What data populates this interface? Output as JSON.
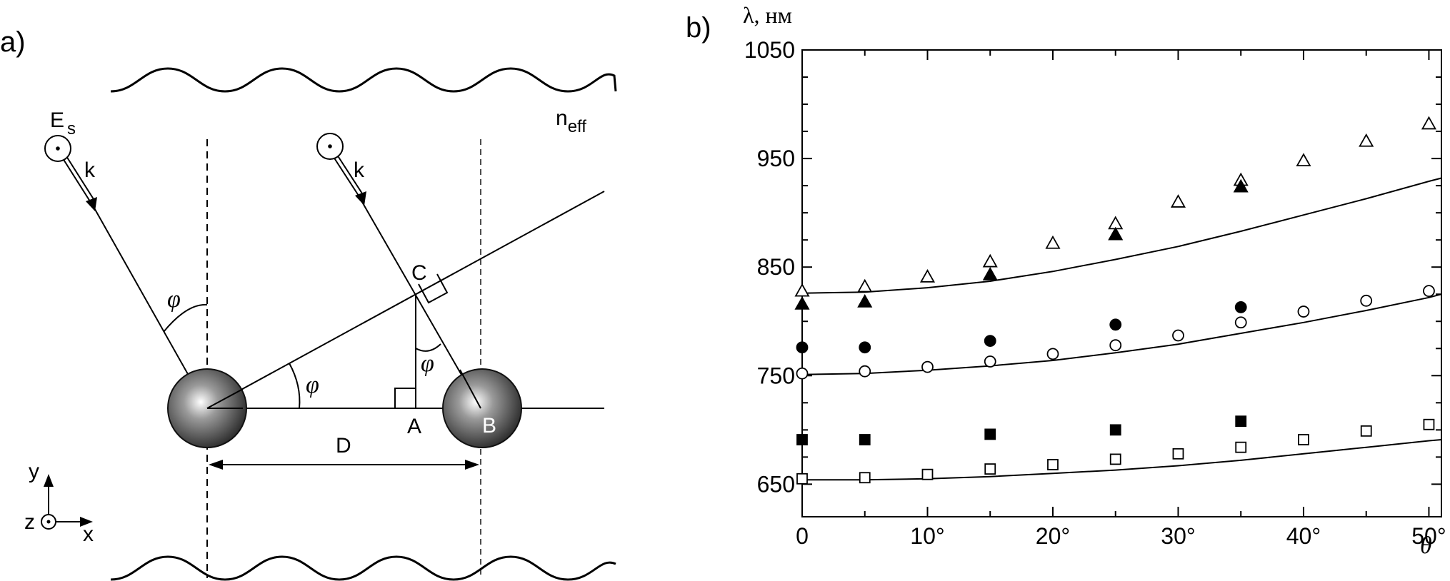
{
  "panel_a": {
    "panel_label": "a)",
    "medium_label": "n",
    "medium_sub": "eff",
    "field_label": "E",
    "field_sub": "s",
    "wavevector_label": "k",
    "angle_label": "φ",
    "point_a": "A",
    "point_b": "B",
    "point_c": "C",
    "distance_label": "D",
    "axis_x": "x",
    "axis_y": "y",
    "axis_z": "z"
  },
  "panel_b": {
    "panel_label": "b)",
    "ylabel": "λ, нм",
    "xlabel": "θ"
  },
  "chart_data": {
    "type": "scatter",
    "title": "",
    "xlabel": "θ",
    "ylabel": "λ, нм",
    "xlim": [
      0,
      51
    ],
    "ylim": [
      620,
      1050
    ],
    "x_ticks": [
      0,
      10,
      20,
      30,
      40,
      50
    ],
    "x_tick_labels": [
      "0",
      "10°",
      "20°",
      "30°",
      "40°",
      "50°"
    ],
    "y_ticks": [
      650,
      750,
      850,
      950,
      1050
    ],
    "y_tick_labels": [
      "650",
      "750",
      "850",
      "950",
      "1050"
    ],
    "series": [
      {
        "marker": "triangle-open",
        "x": [
          0,
          5,
          10,
          15,
          20,
          25,
          30,
          35,
          40,
          45,
          50
        ],
        "y": [
          828,
          832,
          841,
          855,
          872,
          890,
          910,
          930,
          948,
          966,
          982
        ]
      },
      {
        "marker": "triangle-filled",
        "x": [
          0,
          5,
          15,
          25,
          35
        ],
        "y": [
          816,
          818,
          843,
          880,
          924
        ]
      },
      {
        "marker": "circle-open",
        "x": [
          0,
          5,
          10,
          15,
          20,
          25,
          30,
          35,
          40,
          45,
          50
        ],
        "y": [
          752,
          754,
          758,
          763,
          770,
          778,
          787,
          799,
          809,
          819,
          828
        ]
      },
      {
        "marker": "circle-filled",
        "x": [
          0,
          5,
          15,
          25,
          35
        ],
        "y": [
          776,
          776,
          782,
          797,
          813
        ]
      },
      {
        "marker": "square-open",
        "x": [
          0,
          5,
          10,
          15,
          20,
          25,
          30,
          35,
          40,
          45,
          50
        ],
        "y": [
          655,
          656,
          659,
          664,
          668,
          673,
          678,
          684,
          691,
          699,
          705
        ]
      },
      {
        "marker": "square-filled",
        "x": [
          0,
          5,
          15,
          25,
          35
        ],
        "y": [
          691,
          691,
          696,
          700,
          708
        ]
      },
      {
        "marker": "line",
        "x": [
          0,
          5,
          10,
          15,
          20,
          25,
          30,
          35,
          40,
          45,
          50,
          51
        ],
        "y": [
          826,
          827,
          831,
          837,
          846,
          857,
          869,
          883,
          898,
          913,
          929,
          932
        ]
      },
      {
        "marker": "line",
        "x": [
          0,
          5,
          10,
          15,
          20,
          25,
          30,
          35,
          40,
          45,
          50,
          51
        ],
        "y": [
          751,
          752,
          755,
          759,
          764,
          771,
          779,
          789,
          799,
          810,
          822,
          825
        ]
      },
      {
        "marker": "line",
        "x": [
          0,
          5,
          10,
          15,
          20,
          25,
          30,
          35,
          40,
          45,
          50,
          51
        ],
        "y": [
          654,
          654,
          655,
          657,
          660,
          663,
          667,
          672,
          678,
          684,
          690,
          691
        ]
      }
    ]
  }
}
